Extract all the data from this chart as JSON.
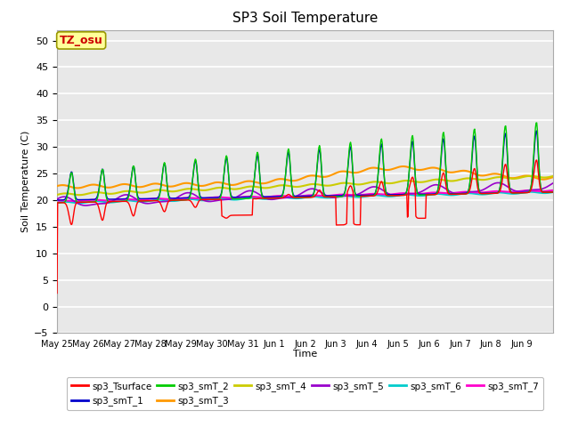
{
  "title": "SP3 Soil Temperature",
  "ylabel": "Soil Temperature (C)",
  "xlabel": "Time",
  "ylim": [
    -5,
    52
  ],
  "bg_color": "#e8e8e8",
  "tz_label": "TZ_osu",
  "tz_bg": "#ffff99",
  "tz_border": "#999900",
  "tz_text_color": "#cc0000",
  "x_tick_labels": [
    "May 25",
    "May 26",
    "May 27",
    "May 28",
    "May 29",
    "May 30",
    "May 31",
    "Jun 1",
    "Jun 2",
    "Jun 3",
    "Jun 4",
    "Jun 5",
    "Jun 6",
    "Jun 7",
    "Jun 8",
    "Jun 9"
  ],
  "series_colors": {
    "sp3_Tsurface": "#ff0000",
    "sp3_smT_1": "#0000cc",
    "sp3_smT_2": "#00cc00",
    "sp3_smT_3": "#ff9900",
    "sp3_smT_4": "#cccc00",
    "sp3_smT_5": "#9900cc",
    "sp3_smT_6": "#00cccc",
    "sp3_smT_7": "#ff00cc"
  },
  "yticks": [
    -5,
    0,
    5,
    10,
    15,
    20,
    25,
    30,
    35,
    40,
    45,
    50
  ],
  "legend_order": [
    "sp3_Tsurface",
    "sp3_smT_1",
    "sp3_smT_2",
    "sp3_smT_3",
    "sp3_smT_4",
    "sp3_smT_5",
    "sp3_smT_6",
    "sp3_smT_7"
  ]
}
